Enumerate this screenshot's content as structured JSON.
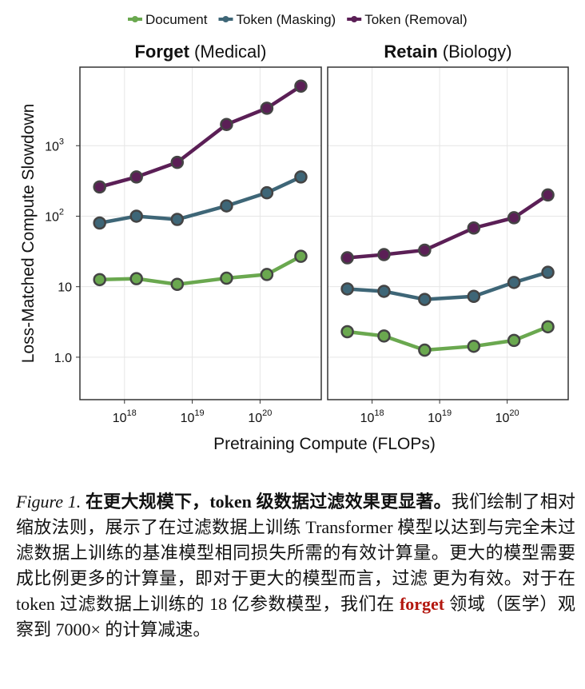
{
  "chart_data": {
    "type": "line",
    "legend": {
      "placement": "top",
      "entries": [
        "Document",
        "Token (Masking)",
        "Token (Removal)"
      ]
    },
    "xlabel": "Pretraining Compute (FLOPs)",
    "ylabel": "Loss-Matched Compute Slowdown",
    "xscale": "log",
    "yscale": "log",
    "xlim": [
      2.2e+17,
      8e+20
    ],
    "ylim": [
      0.25,
      13000
    ],
    "xticks": [
      {
        "value": 1e+18,
        "base": "10",
        "exp": "18"
      },
      {
        "value": 1e+19,
        "base": "10",
        "exp": "19"
      },
      {
        "value": 1e+20,
        "base": "10",
        "exp": "20"
      }
    ],
    "yticks": [
      {
        "value": 1,
        "label": "1.0"
      },
      {
        "value": 10,
        "label": "10"
      },
      {
        "value": 100,
        "label": "10",
        "exp": "2"
      },
      {
        "value": 1000,
        "label": "10",
        "exp": "3"
      }
    ],
    "grid": true,
    "x": [
      4.3e+17,
      1.5e+18,
      6e+18,
      3.2e+19,
      1.26e+20,
      4e+20
    ],
    "colors": {
      "Document": "#6aa84f",
      "Token (Masking)": "#3e6677",
      "Token (Removal)": "#5b1f56"
    },
    "panels": [
      {
        "title_bold": "Forget",
        "title_rest": " (Medical)",
        "series": [
          {
            "name": "Document",
            "values": [
              12.6,
              13,
              10.8,
              13.2,
              14.9,
              27
            ]
          },
          {
            "name": "Token (Masking)",
            "values": [
              80,
              100,
              90,
              140,
              215,
              360
            ]
          },
          {
            "name": "Token (Removal)",
            "values": [
              260,
              360,
              580,
              2000,
              3400,
              7000
            ]
          }
        ]
      },
      {
        "title_bold": "Retain",
        "title_rest": " (Biology)",
        "series": [
          {
            "name": "Document",
            "values": [
              2.3,
              2.0,
              1.26,
              1.43,
              1.73,
              2.7
            ]
          },
          {
            "name": "Token (Masking)",
            "values": [
              9.3,
              8.6,
              6.6,
              7.3,
              11.5,
              16
            ]
          },
          {
            "name": "Token (Removal)",
            "values": [
              25.7,
              28.5,
              33,
              68,
              95,
              200
            ]
          }
        ]
      }
    ]
  },
  "caption": {
    "figure_label": "Figure 1.",
    "bold_title": " 在更大规模下，token 级数据过滤效果更显著。",
    "text1": "我们绘制了相对缩放法则，展示了在过滤数据上训练 Transformer 模型以达到与完全未过滤数据上训练的基准模型相同损失所需的有效计算量。更大的模型需要成比例更多的计算量，即对于更大的模型而言，过滤 更为有效。对于在 token 过滤数据上训练的 18 亿参数模型，我们在 ",
    "highlight": "forget",
    "text2": " 领域（医学）观察到 7000× 的计算减速。"
  }
}
